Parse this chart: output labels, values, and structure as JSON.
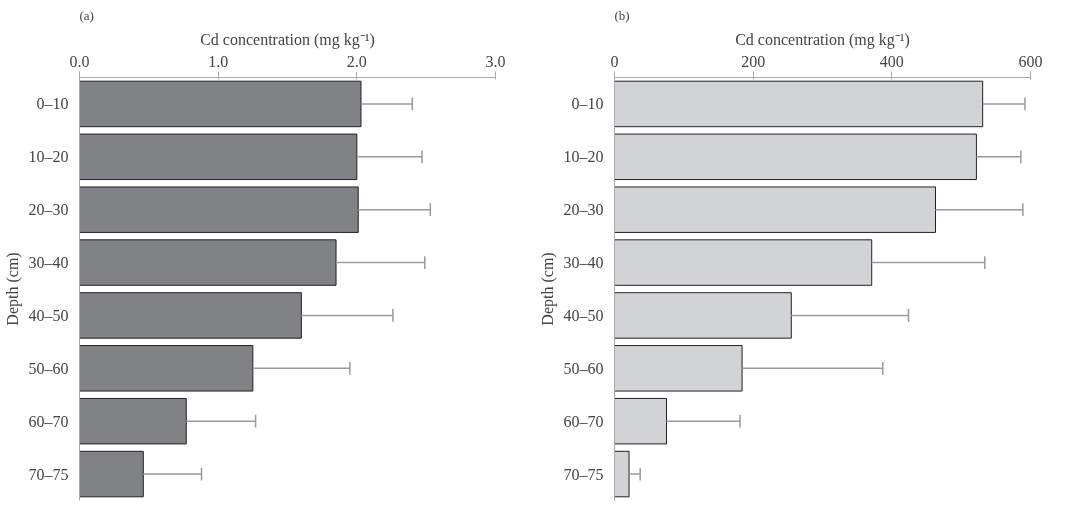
{
  "chart_data": [
    {
      "type": "bar",
      "orientation": "horizontal",
      "title": "(a)",
      "xlabel": "Cd concentration (mg kg⁻¹)",
      "ylabel": "Depth (cm)",
      "categories": [
        "0–10",
        "10–20",
        "20–30",
        "30–40",
        "40–50",
        "50–60",
        "60–70",
        "70–75"
      ],
      "values": [
        2.03,
        2.0,
        2.01,
        1.85,
        1.6,
        1.25,
        0.77,
        0.46
      ],
      "errors": [
        [
          2.03,
          2.4
        ],
        [
          2.0,
          2.47
        ],
        [
          2.01,
          2.53
        ],
        [
          1.85,
          2.49
        ],
        [
          1.6,
          2.26
        ],
        [
          1.25,
          1.95
        ],
        [
          0.77,
          1.27
        ],
        [
          0.46,
          0.88
        ]
      ],
      "color": "#808285",
      "xlim": [
        0,
        3.0
      ],
      "xticks": [
        {
          "value": 0,
          "label": "0.0"
        },
        {
          "value": 1,
          "label": "1.0"
        },
        {
          "value": 2,
          "label": "2.0"
        },
        {
          "value": 3,
          "label": "3.0"
        }
      ],
      "grid": false
    },
    {
      "type": "bar",
      "orientation": "horizontal",
      "title": "(b)",
      "xlabel": "Cd concentration (mg kg⁻¹)",
      "ylabel": "Depth (cm)",
      "categories": [
        "0–10",
        "10–20",
        "20–30",
        "30–40",
        "40–50",
        "50–60",
        "60–70",
        "70–75"
      ],
      "values": [
        531,
        522,
        463,
        371,
        255,
        184,
        75,
        21
      ],
      "errors": [
        [
          531,
          592
        ],
        [
          522,
          586
        ],
        [
          463,
          589
        ],
        [
          371,
          534
        ],
        [
          255,
          424
        ],
        [
          184,
          387
        ],
        [
          75,
          181
        ],
        [
          21,
          37
        ]
      ],
      "color": "#d1d3d4",
      "xlim": [
        0,
        600
      ],
      "xticks": [
        0,
        200,
        400,
        600
      ],
      "grid": false
    }
  ]
}
